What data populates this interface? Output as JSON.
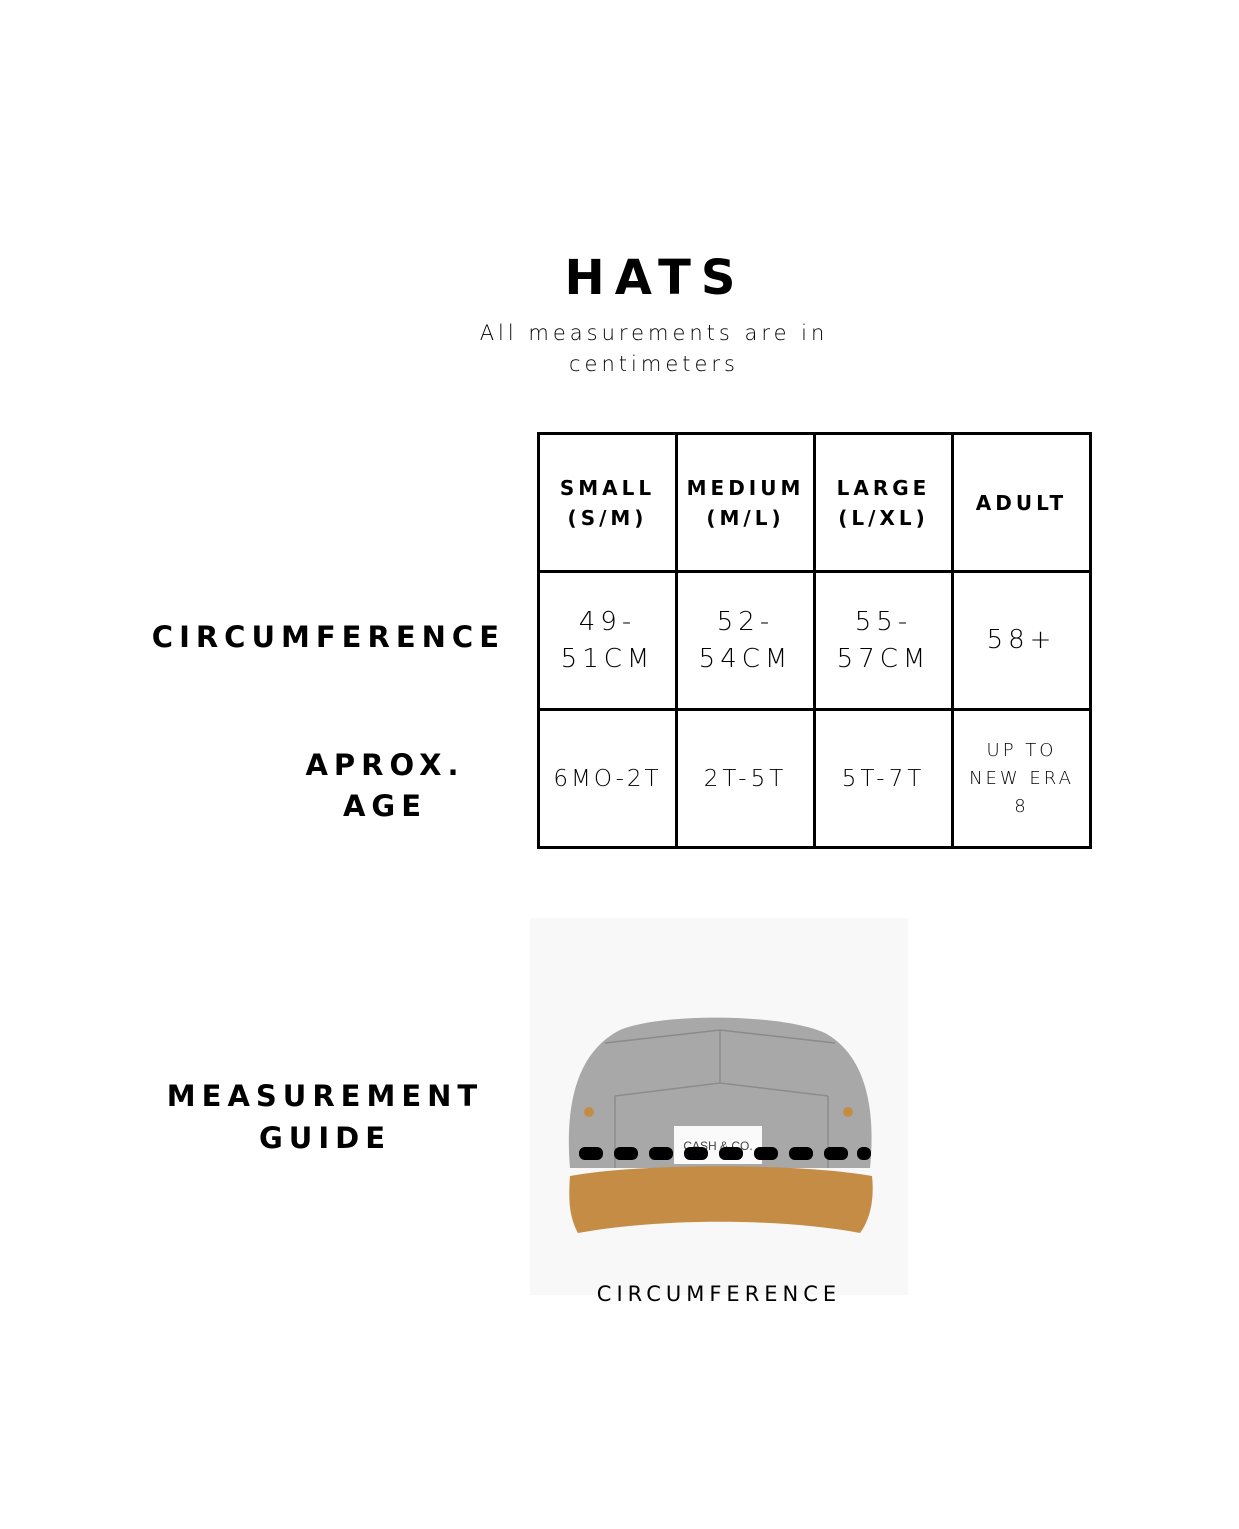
{
  "title": "HATS",
  "subtitle": "All measurements are in centimeters",
  "table": {
    "headers": [
      {
        "line1": "SMALL",
        "line2": "(S/M)"
      },
      {
        "line1": "MEDIUM",
        "line2": "(M/L)"
      },
      {
        "line1": "LARGE",
        "line2": "(L/XL)"
      },
      {
        "line1": "ADULT",
        "line2": ""
      }
    ],
    "rows": [
      {
        "label": "CIRCUMFERENCE",
        "cells": [
          {
            "line1": "49-",
            "line2": "51CM"
          },
          {
            "line1": "52-",
            "line2": "54CM"
          },
          {
            "line1": "55-",
            "line2": "57CM"
          },
          {
            "line1": "58+",
            "line2": ""
          }
        ]
      },
      {
        "label_line1": "APROX.",
        "label_line2": "AGE",
        "cells": [
          {
            "line1": "6MO-2T"
          },
          {
            "line1": "2T-5T"
          },
          {
            "line1": "5T-7T"
          },
          {
            "line1": "UP TO",
            "line2": "NEW ERA",
            "line3": "8"
          }
        ]
      }
    ]
  },
  "guide": {
    "label_line1": "MEASUREMENT",
    "label_line2": "GUIDE",
    "hat_tag": "CASH & CO.",
    "caption": "CIRCUMFERENCE",
    "colors": {
      "crown": "#a9a9a9",
      "brim": "#c58c45",
      "dash": "#000000"
    }
  }
}
